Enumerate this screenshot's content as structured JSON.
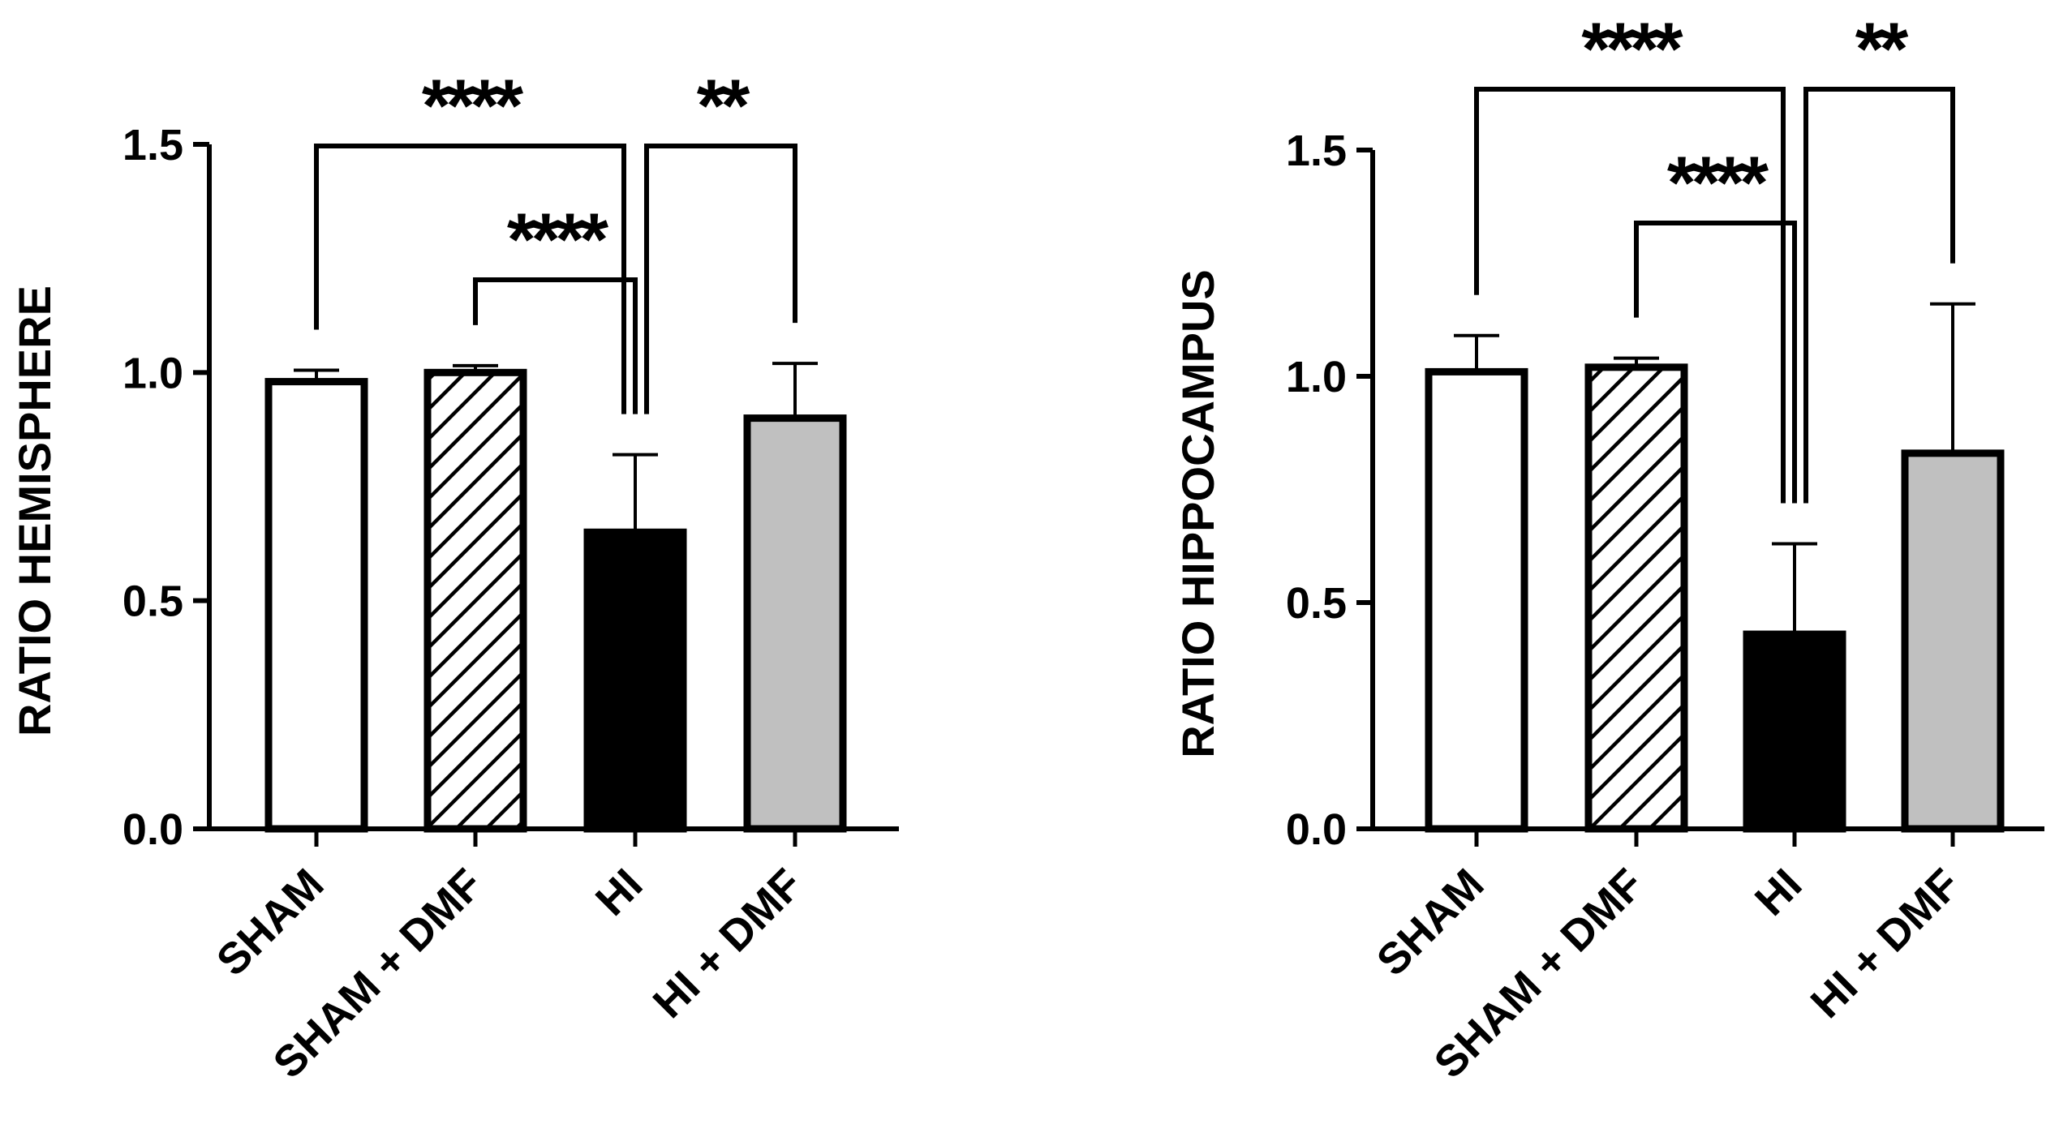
{
  "chart_data": [
    {
      "type": "bar",
      "categories": [
        "SHAM",
        "SHAM + DMF",
        "HI",
        "HI + DMF"
      ],
      "values": [
        0.98,
        1.0,
        0.65,
        0.9
      ],
      "errors": [
        0.025,
        0.015,
        0.17,
        0.12
      ],
      "fills": [
        "#ffffff",
        "hatch",
        "#000000",
        "#c0c0c0"
      ],
      "title": "",
      "xlabel": "",
      "ylabel": "RATIO HEMISPHERE",
      "ylim": [
        0,
        1.5
      ],
      "yticks": [
        0.0,
        0.5,
        1.0,
        1.5
      ],
      "ytick_labels": [
        "0.0",
        "0.5",
        "1.0",
        "1.5"
      ],
      "significance": [
        {
          "from": "SHAM",
          "to": "HI",
          "label": "****"
        },
        {
          "from": "SHAM + DMF",
          "to": "HI",
          "label": "****"
        },
        {
          "from": "HI",
          "to": "HI + DMF",
          "label": "**"
        }
      ]
    },
    {
      "type": "bar",
      "categories": [
        "SHAM",
        "SHAM + DMF",
        "HI",
        "HI + DMF"
      ],
      "values": [
        1.01,
        1.02,
        0.43,
        0.83
      ],
      "errors": [
        0.08,
        0.02,
        0.2,
        0.33
      ],
      "fills": [
        "#ffffff",
        "hatch",
        "#000000",
        "#c0c0c0"
      ],
      "title": "",
      "xlabel": "",
      "ylabel": "RATIO HIPPOCAMPUS",
      "ylim": [
        0,
        1.5
      ],
      "yticks": [
        0.0,
        0.5,
        1.0,
        1.5
      ],
      "ytick_labels": [
        "0.0",
        "0.5",
        "1.0",
        "1.5"
      ],
      "significance": [
        {
          "from": "SHAM",
          "to": "HI",
          "label": "****"
        },
        {
          "from": "SHAM + DMF",
          "to": "HI",
          "label": "****"
        },
        {
          "from": "HI",
          "to": "HI + DMF",
          "label": "**"
        }
      ]
    }
  ]
}
